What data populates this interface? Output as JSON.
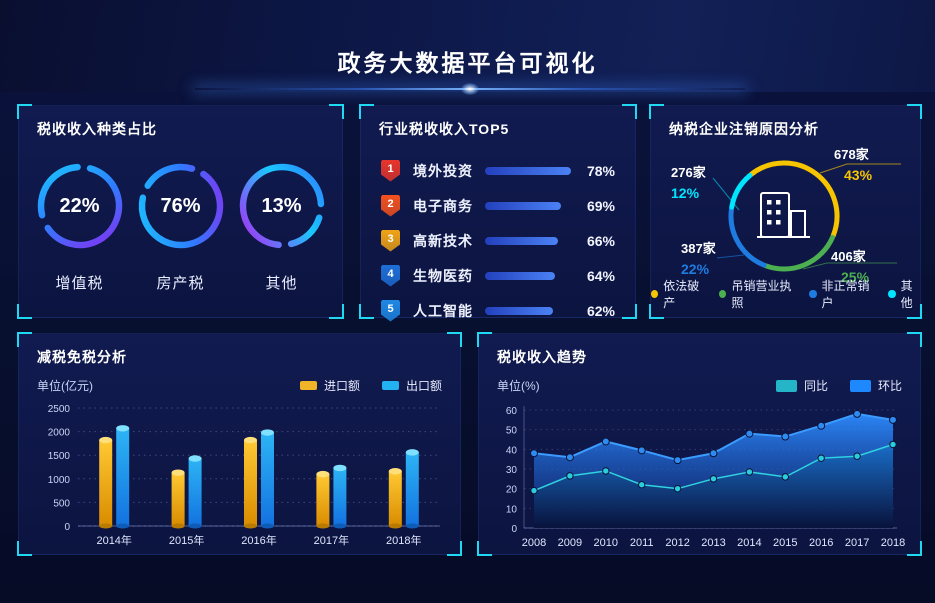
{
  "header": {
    "title": "政务大数据平台可视化"
  },
  "panels": {
    "tax_type": {
      "title": "税收收入种类占比",
      "items": [
        {
          "percent": "22%",
          "label": "增值税"
        },
        {
          "percent": "76%",
          "label": "房产税"
        },
        {
          "percent": "13%",
          "label": "其他"
        }
      ]
    },
    "industry_top5": {
      "title": "行业税收收入TOP5",
      "items": [
        {
          "rank": "1",
          "label": "境外投资",
          "percent": "78%",
          "value": 78,
          "badge_color": "#e8352b"
        },
        {
          "rank": "2",
          "label": "电子商务",
          "percent": "69%",
          "value": 69,
          "badge_color": "#f4511e"
        },
        {
          "rank": "3",
          "label": "高新技术",
          "percent": "66%",
          "value": 66,
          "badge_color": "#f0a315"
        },
        {
          "rank": "4",
          "label": "生物医药",
          "percent": "64%",
          "value": 64,
          "badge_color": "#1e6fd8"
        },
        {
          "rank": "5",
          "label": "人工智能",
          "percent": "62%",
          "value": 62,
          "badge_color": "#1e88e5"
        }
      ]
    },
    "cancellation": {
      "title": "纳税企业注销原因分析",
      "segments": [
        {
          "label": "依法破产",
          "count": "678家",
          "percent": "43%",
          "value": 43,
          "color": "#f7c500"
        },
        {
          "label": "吊销营业执照",
          "count": "406家",
          "percent": "25%",
          "value": 25,
          "color": "#4caf50"
        },
        {
          "label": "非正常销户",
          "count": "387家",
          "percent": "22%",
          "value": 22,
          "color": "#1e7be0"
        },
        {
          "label": "其他",
          "count": "276家",
          "percent": "12%",
          "value": 12,
          "color": "#00e5ff"
        }
      ]
    },
    "tax_reduction": {
      "title": "减税免税分析",
      "unit": "单位(亿元)"
    },
    "tax_trend": {
      "title": "税收收入趋势",
      "unit": "单位(%)"
    }
  },
  "chart_data": [
    {
      "type": "pie",
      "variant": "donut-gauges",
      "title": "税收收入种类占比",
      "labels": [
        "增值税",
        "房产税",
        "其他"
      ],
      "values": [
        22,
        76,
        13
      ],
      "unit": "%"
    },
    {
      "type": "bar",
      "orientation": "horizontal",
      "title": "行业税收收入TOP5",
      "categories": [
        "境外投资",
        "电子商务",
        "高新技术",
        "生物医药",
        "人工智能"
      ],
      "values": [
        78,
        69,
        66,
        64,
        62
      ],
      "unit": "%",
      "xlim": [
        0,
        80
      ]
    },
    {
      "type": "pie",
      "variant": "donut",
      "title": "纳税企业注销原因分析",
      "labels": [
        "依法破产",
        "吊销营业执照",
        "非正常销户",
        "其他"
      ],
      "values": [
        43,
        25,
        22,
        12
      ],
      "counts": [
        "678家",
        "406家",
        "387家",
        "276家"
      ],
      "colors": [
        "#f7c500",
        "#4caf50",
        "#1e7be0",
        "#00e5ff"
      ],
      "legend_position": "bottom"
    },
    {
      "type": "bar",
      "title": "减税免税分析",
      "categories": [
        "2014年",
        "2015年",
        "2016年",
        "2017年",
        "2018年"
      ],
      "series": [
        {
          "name": "进口额",
          "values": [
            1820,
            1130,
            1820,
            1100,
            1160
          ],
          "color": "#f0a315"
        },
        {
          "name": "出口额",
          "values": [
            2070,
            1430,
            1980,
            1230,
            1560
          ],
          "color": "#1ea8f0"
        }
      ],
      "ylabel": "单位(亿元)",
      "ylim": [
        0,
        2500
      ],
      "yticks": [
        0,
        500,
        1000,
        1500,
        2000,
        2500
      ],
      "grid": "dotted",
      "legend_position": "top-right"
    },
    {
      "type": "area",
      "title": "税收收入趋势",
      "x": [
        2008,
        2009,
        2010,
        2011,
        2012,
        2013,
        2014,
        2015,
        2016,
        2017,
        2018
      ],
      "series": [
        {
          "name": "同比",
          "values": [
            19,
            26.5,
            29,
            22,
            20,
            25,
            28.5,
            26,
            35.5,
            36.5,
            42.5
          ],
          "color": "#2fd3e0"
        },
        {
          "name": "环比",
          "values": [
            38,
            36,
            44,
            39.5,
            34.5,
            38,
            48,
            46.5,
            52,
            58,
            55
          ],
          "color": "#2e8cf0"
        }
      ],
      "ylabel": "单位(%)",
      "ylim": [
        0,
        60
      ],
      "yticks": [
        0,
        10,
        20,
        30,
        40,
        50,
        60
      ],
      "grid": "dotted",
      "legend_position": "top-right"
    }
  ]
}
